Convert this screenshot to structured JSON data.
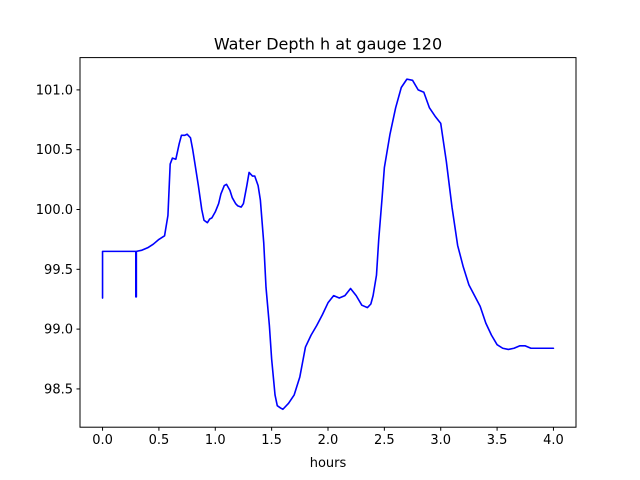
{
  "chart_data": {
    "type": "line",
    "title": "Water Depth h at gauge 120",
    "xlabel": "hours",
    "ylabel": "",
    "xlim": [
      -0.2,
      4.2
    ],
    "ylim": [
      98.18,
      101.27
    ],
    "grid": false,
    "legend": "none",
    "x_ticks": [
      0.0,
      0.5,
      1.0,
      1.5,
      2.0,
      2.5,
      3.0,
      3.5,
      4.0
    ],
    "x_tick_labels": [
      "0.0",
      "0.5",
      "1.0",
      "1.5",
      "2.0",
      "2.5",
      "3.0",
      "3.5",
      "4.0"
    ],
    "y_ticks": [
      98.5,
      99.0,
      99.5,
      100.0,
      100.5,
      101.0
    ],
    "y_tick_labels": [
      "98.5",
      "99.0",
      "99.5",
      "100.0",
      "100.5",
      "101.0"
    ],
    "series": [
      {
        "color": "#0000ff",
        "x": [
          0.0,
          0.0,
          0.29,
          0.295,
          0.295,
          0.3,
          0.3,
          0.35,
          0.4,
          0.45,
          0.5,
          0.55,
          0.58,
          0.6,
          0.62,
          0.65,
          0.68,
          0.7,
          0.73,
          0.75,
          0.78,
          0.8,
          0.82,
          0.85,
          0.88,
          0.9,
          0.93,
          0.95,
          0.97,
          1.0,
          1.03,
          1.05,
          1.08,
          1.1,
          1.13,
          1.15,
          1.18,
          1.2,
          1.23,
          1.25,
          1.28,
          1.3,
          1.33,
          1.35,
          1.38,
          1.4,
          1.43,
          1.45,
          1.48,
          1.5,
          1.53,
          1.55,
          1.58,
          1.6,
          1.65,
          1.7,
          1.75,
          1.78,
          1.8,
          1.85,
          1.9,
          1.95,
          2.0,
          2.05,
          2.1,
          2.15,
          2.2,
          2.25,
          2.3,
          2.35,
          2.38,
          2.4,
          2.43,
          2.45,
          2.48,
          2.5,
          2.55,
          2.6,
          2.65,
          2.7,
          2.75,
          2.8,
          2.85,
          2.9,
          2.95,
          3.0,
          3.05,
          3.1,
          3.15,
          3.2,
          3.25,
          3.3,
          3.35,
          3.4,
          3.45,
          3.5,
          3.55,
          3.6,
          3.65,
          3.7,
          3.75,
          3.8,
          3.85,
          3.9,
          3.95,
          4.0
        ],
        "y": [
          99.26,
          99.65,
          99.65,
          99.65,
          99.27,
          99.27,
          99.65,
          99.66,
          99.68,
          99.71,
          99.75,
          99.78,
          99.95,
          100.38,
          100.43,
          100.42,
          100.55,
          100.62,
          100.62,
          100.63,
          100.6,
          100.5,
          100.38,
          100.2,
          100.0,
          99.91,
          99.89,
          99.92,
          99.93,
          99.98,
          100.05,
          100.13,
          100.2,
          100.21,
          100.16,
          100.1,
          100.05,
          100.03,
          100.02,
          100.05,
          100.2,
          100.31,
          100.28,
          100.28,
          100.2,
          100.08,
          99.72,
          99.35,
          99.03,
          98.75,
          98.45,
          98.36,
          98.34,
          98.33,
          98.38,
          98.45,
          98.6,
          98.75,
          98.85,
          98.95,
          99.03,
          99.12,
          99.22,
          99.28,
          99.26,
          99.28,
          99.34,
          99.28,
          99.2,
          99.18,
          99.21,
          99.28,
          99.45,
          99.75,
          100.1,
          100.35,
          100.63,
          100.85,
          101.02,
          101.09,
          101.08,
          101.0,
          100.98,
          100.85,
          100.78,
          100.72,
          100.4,
          100.02,
          99.7,
          99.52,
          99.37,
          99.28,
          99.19,
          99.05,
          98.95,
          98.87,
          98.84,
          98.83,
          98.84,
          98.86,
          98.86,
          98.84,
          98.84,
          98.84,
          98.84,
          98.84
        ]
      }
    ]
  }
}
